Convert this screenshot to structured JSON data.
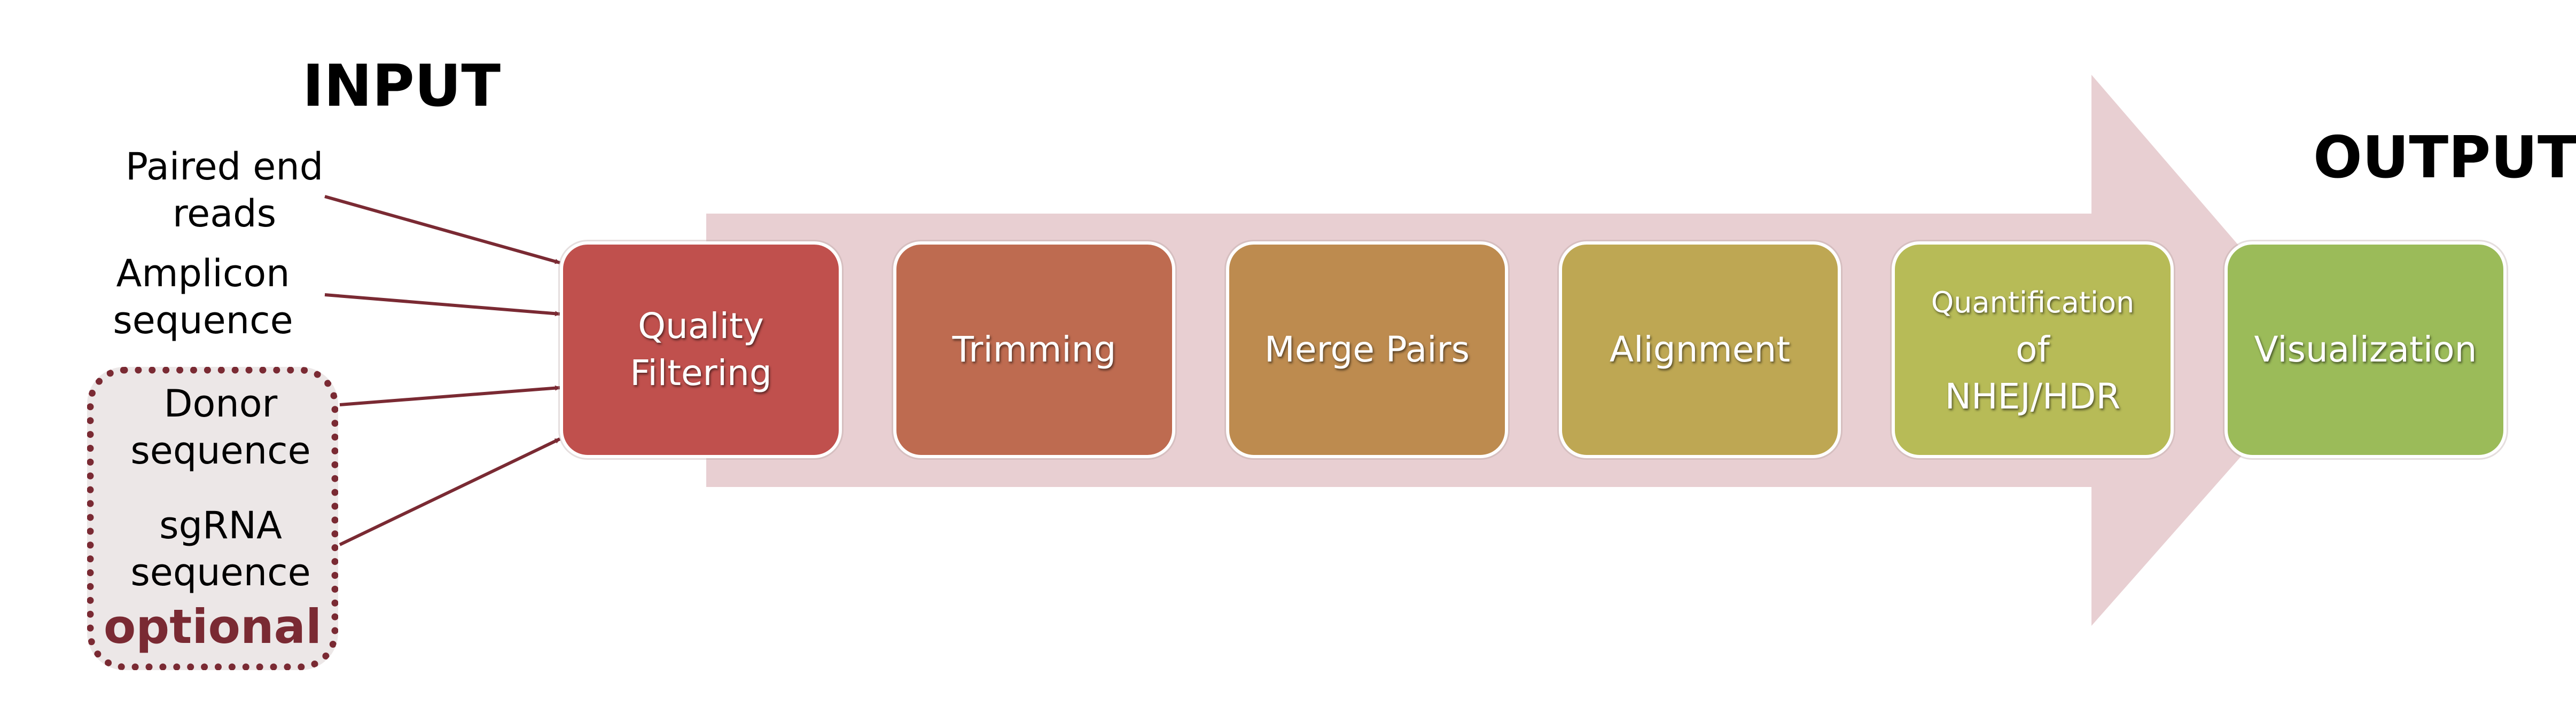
{
  "headings": {
    "input": "INPUT",
    "output": "OUTPUT"
  },
  "inputs": [
    {
      "label": "Paired end\nreads",
      "optional": false
    },
    {
      "label": "Amplicon\nsequence",
      "optional": false
    },
    {
      "label": "Donor\nsequence",
      "optional": true
    },
    {
      "label": "sgRNA\nsequence",
      "optional": true
    }
  ],
  "optional_label": "optional",
  "steps": [
    {
      "label": "Quality\nFiltering",
      "color": "#c0504d"
    },
    {
      "label": "Trimming",
      "color": "#be6b50"
    },
    {
      "label": "Merge Pairs",
      "color": "#bd8b4f"
    },
    {
      "label": "Alignment",
      "color": "#bea753"
    },
    {
      "label": "Quantification\nof NHEJ/HDR",
      "color": "#b7bb57"
    },
    {
      "label": "Visualization",
      "color": "#9bbb59"
    }
  ],
  "colors": {
    "arrow": "#e8cfd2",
    "connector": "#7a2a33",
    "optional_border": "#7a2a33"
  }
}
